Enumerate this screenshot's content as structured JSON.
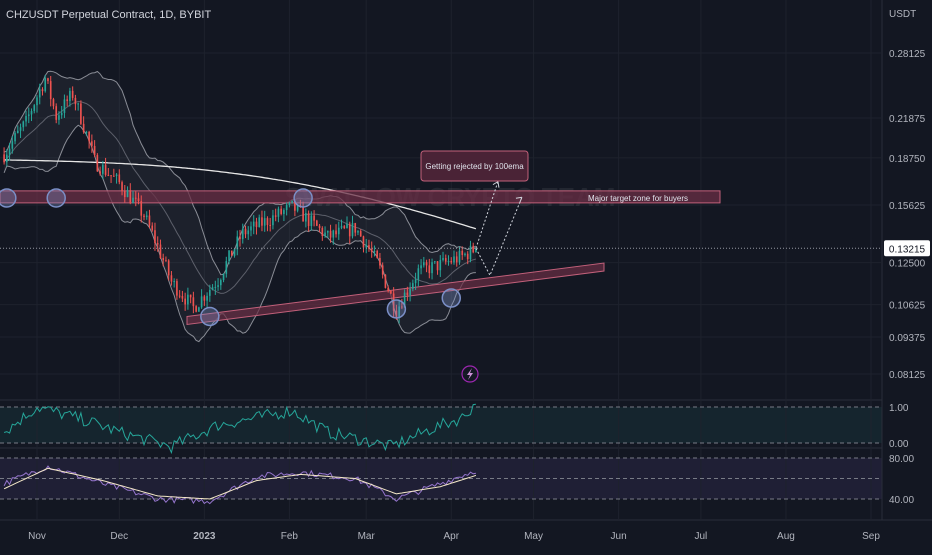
{
  "header": {
    "title": "CHZUSDT Perpetual Contract, 1D, BYBIT",
    "currency": "USDT"
  },
  "watermark": "SWALLOW CRYPTO TEAM",
  "colors": {
    "background": "#131722",
    "candle_up": "#26a69a",
    "candle_down": "#ef5350",
    "ema": "#e6e6e6",
    "bollinger": "#8a8d96",
    "zone_fill": "#6b2f45",
    "zone_stroke": "#c2607a",
    "marker_circle": "#7b8fc7",
    "rsi_line": "#26a69a",
    "stoch_k": "#9575cd",
    "stoch_d": "#f5e9c8",
    "price_tag_bg": "#ffffff"
  },
  "annotations": {
    "rejection": "Getting rejected by 100ema",
    "target_zone": "Major target zone for buyers",
    "current_price": "0.13215"
  },
  "x_axis": [
    "Nov",
    "Dec",
    "2023",
    "Feb",
    "Mar",
    "Apr",
    "May",
    "Jun",
    "Jul",
    "Aug",
    "Sep"
  ],
  "chart_data": [
    {
      "type": "candlestick",
      "title": "CHZUSDT Perpetual Contract, 1D, BYBIT",
      "y_scale": "log",
      "y_ticks": [
        0.28125,
        0.21875,
        0.1875,
        0.15625,
        0.125,
        0.10625,
        0.09375,
        0.08125
      ],
      "y_tick_labels": [
        "0.28125",
        "0.21875",
        "0.18750",
        "0.15625",
        "0.12500",
        "0.10625",
        "0.09375",
        "0.08125"
      ],
      "x": [
        "Nov",
        "Dec",
        "2023",
        "Feb",
        "Mar",
        "Apr",
        "May",
        "Jun",
        "Jul",
        "Aug",
        "Sep"
      ],
      "last_price": 0.13215,
      "close_waypoints": [
        [
          "Oct 20",
          0.19
        ],
        [
          "Oct 28",
          0.215
        ],
        [
          "Nov 4",
          0.255
        ],
        [
          "Nov 8",
          0.22
        ],
        [
          "Nov 14",
          0.24
        ],
        [
          "Nov 22",
          0.185
        ],
        [
          "Dec 1",
          0.17
        ],
        [
          "Dec 10",
          0.15
        ],
        [
          "Dec 20",
          0.116
        ],
        [
          "Dec 28",
          0.105
        ],
        [
          "Jan 6",
          0.117
        ],
        [
          "Jan 15",
          0.14
        ],
        [
          "Jan 25",
          0.148
        ],
        [
          "Feb 2",
          0.155
        ],
        [
          "Feb 6",
          0.15
        ],
        [
          "Feb 15",
          0.138
        ],
        [
          "Feb 25",
          0.143
        ],
        [
          "Mar 5",
          0.125
        ],
        [
          "Mar 12",
          0.104
        ],
        [
          "Mar 20",
          0.121
        ],
        [
          "Mar 28",
          0.124
        ],
        [
          "Apr 5",
          0.128
        ],
        [
          "Apr 10",
          0.13215
        ]
      ]
    },
    {
      "type": "line",
      "y_ticks": [
        1.0,
        0.0
      ],
      "y_tick_labels": [
        "1.00",
        "0.00"
      ],
      "series": [
        {
          "values_waypoints": [
            [
              "Oct 20",
              0.3
            ],
            [
              "Nov 1",
              1.0
            ],
            [
              "Nov 20",
              0.6
            ],
            [
              "Dec 1",
              0.3
            ],
            [
              "Dec 20",
              -0.1
            ],
            [
              "Jan 6",
              0.5
            ],
            [
              "Jan 20",
              0.7
            ],
            [
              "Feb 2",
              0.9
            ],
            [
              "Feb 15",
              0.3
            ],
            [
              "Mar 10",
              -0.1
            ],
            [
              "Mar 25",
              0.4
            ],
            [
              "Apr 5",
              0.7
            ],
            [
              "Apr 10",
              1.1
            ]
          ]
        }
      ]
    },
    {
      "type": "line",
      "y_ticks": [
        80,
        40
      ],
      "y_tick_labels": [
        "80.00",
        "40.00"
      ],
      "series": [
        {
          "values_waypoints": [
            [
              "Oct 20",
              55
            ],
            [
              "Nov 5",
              72
            ],
            [
              "Nov 25",
              55
            ],
            [
              "Dec 15",
              40
            ],
            [
              "Jan 3",
              38
            ],
            [
              "Jan 20",
              62
            ],
            [
              "Feb 5",
              66
            ],
            [
              "Feb 25",
              60
            ],
            [
              "Mar 12",
              40
            ],
            [
              "Mar 28",
              55
            ],
            [
              "Apr 10",
              68
            ]
          ]
        },
        {
          "values_waypoints": [
            [
              "Oct 20",
              50
            ],
            [
              "Nov 5",
              70
            ],
            [
              "Nov 25",
              58
            ],
            [
              "Dec 15",
              43
            ],
            [
              "Jan 3",
              40
            ],
            [
              "Jan 20",
              58
            ],
            [
              "Feb 5",
              64
            ],
            [
              "Feb 25",
              60
            ],
            [
              "Mar 12",
              45
            ],
            [
              "Mar 28",
              52
            ],
            [
              "Apr 10",
              63
            ]
          ]
        }
      ]
    }
  ]
}
